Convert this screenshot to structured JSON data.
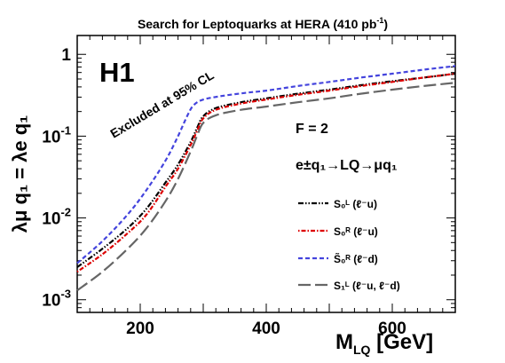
{
  "chart_data": {
    "type": "line",
    "title": "Search for Leptoquarks at HERA (410 pb",
    "title_sup": "-1",
    "title_close": ")",
    "experiment_label": "H1",
    "excluded_label": "Excluded at 95% CL",
    "f_label": "F = 2",
    "process_label": "e±q₁→LQ→μq₁",
    "xlabel": "M",
    "xlabel_sub": "LQ",
    "xlabel_unit": " [GeV]",
    "ylabel": "λμ q₁ = λe q₁",
    "x_scale": "linear",
    "y_scale": "log",
    "xlim": [
      100,
      700
    ],
    "ylim": [
      0.0007,
      1.7
    ],
    "x_ticks": [
      {
        "value": 200,
        "label": "200"
      },
      {
        "value": 400,
        "label": "400"
      },
      {
        "value": 600,
        "label": "600"
      }
    ],
    "y_ticks": [
      {
        "value": 0.001,
        "base": "10",
        "exp": "-3"
      },
      {
        "value": 0.01,
        "base": "10",
        "exp": "-2"
      },
      {
        "value": 0.1,
        "base": "10",
        "exp": "-1"
      },
      {
        "value": 1,
        "base": "1",
        "exp": ""
      }
    ],
    "grid": false,
    "legend_position": "right",
    "series": [
      {
        "name": "S₀ᴸ (ℓ⁻u)",
        "color": "#000000",
        "dash": "6,2,1.5,2,1.5,2",
        "points": [
          [
            100,
            0.0025
          ],
          [
            140,
            0.0042
          ],
          [
            180,
            0.0075
          ],
          [
            210,
            0.013
          ],
          [
            240,
            0.027
          ],
          [
            260,
            0.045
          ],
          [
            280,
            0.085
          ],
          [
            290,
            0.125
          ],
          [
            300,
            0.175
          ],
          [
            320,
            0.22
          ],
          [
            360,
            0.26
          ],
          [
            400,
            0.29
          ],
          [
            450,
            0.33
          ],
          [
            500,
            0.37
          ],
          [
            550,
            0.42
          ],
          [
            600,
            0.47
          ],
          [
            650,
            0.52
          ],
          [
            700,
            0.58
          ]
        ]
      },
      {
        "name": "S₀ᴿ (ℓ⁻u)",
        "color": "#dd0000",
        "dash": "1.5,2,5,2",
        "points": [
          [
            100,
            0.0022
          ],
          [
            140,
            0.0036
          ],
          [
            180,
            0.0065
          ],
          [
            210,
            0.011
          ],
          [
            240,
            0.024
          ],
          [
            260,
            0.04
          ],
          [
            280,
            0.078
          ],
          [
            290,
            0.115
          ],
          [
            300,
            0.165
          ],
          [
            320,
            0.21
          ],
          [
            360,
            0.25
          ],
          [
            400,
            0.28
          ],
          [
            450,
            0.32
          ],
          [
            500,
            0.36
          ],
          [
            550,
            0.41
          ],
          [
            600,
            0.46
          ],
          [
            650,
            0.52
          ],
          [
            700,
            0.58
          ]
        ]
      },
      {
        "name": "S̃₀ᴿ (ℓ⁻d)",
        "color": "#4444dd",
        "dash": "5,3",
        "points": [
          [
            100,
            0.0028
          ],
          [
            140,
            0.0052
          ],
          [
            180,
            0.011
          ],
          [
            210,
            0.022
          ],
          [
            240,
            0.05
          ],
          [
            260,
            0.1
          ],
          [
            275,
            0.18
          ],
          [
            285,
            0.24
          ],
          [
            300,
            0.28
          ],
          [
            330,
            0.31
          ],
          [
            370,
            0.34
          ],
          [
            400,
            0.36
          ],
          [
            450,
            0.41
          ],
          [
            500,
            0.46
          ],
          [
            550,
            0.52
          ],
          [
            600,
            0.58
          ],
          [
            650,
            0.65
          ],
          [
            700,
            0.72
          ]
        ]
      },
      {
        "name": "S₁ᴸ (ℓ⁻u, ℓ⁻d)",
        "color": "#666666",
        "dash": "14,5",
        "points": [
          [
            100,
            0.0013
          ],
          [
            140,
            0.0022
          ],
          [
            180,
            0.0042
          ],
          [
            210,
            0.0075
          ],
          [
            240,
            0.016
          ],
          [
            260,
            0.03
          ],
          [
            280,
            0.065
          ],
          [
            290,
            0.1
          ],
          [
            300,
            0.145
          ],
          [
            320,
            0.18
          ],
          [
            360,
            0.21
          ],
          [
            400,
            0.23
          ],
          [
            450,
            0.26
          ],
          [
            500,
            0.29
          ],
          [
            550,
            0.33
          ],
          [
            600,
            0.37
          ],
          [
            650,
            0.41
          ],
          [
            700,
            0.45
          ]
        ]
      }
    ]
  }
}
